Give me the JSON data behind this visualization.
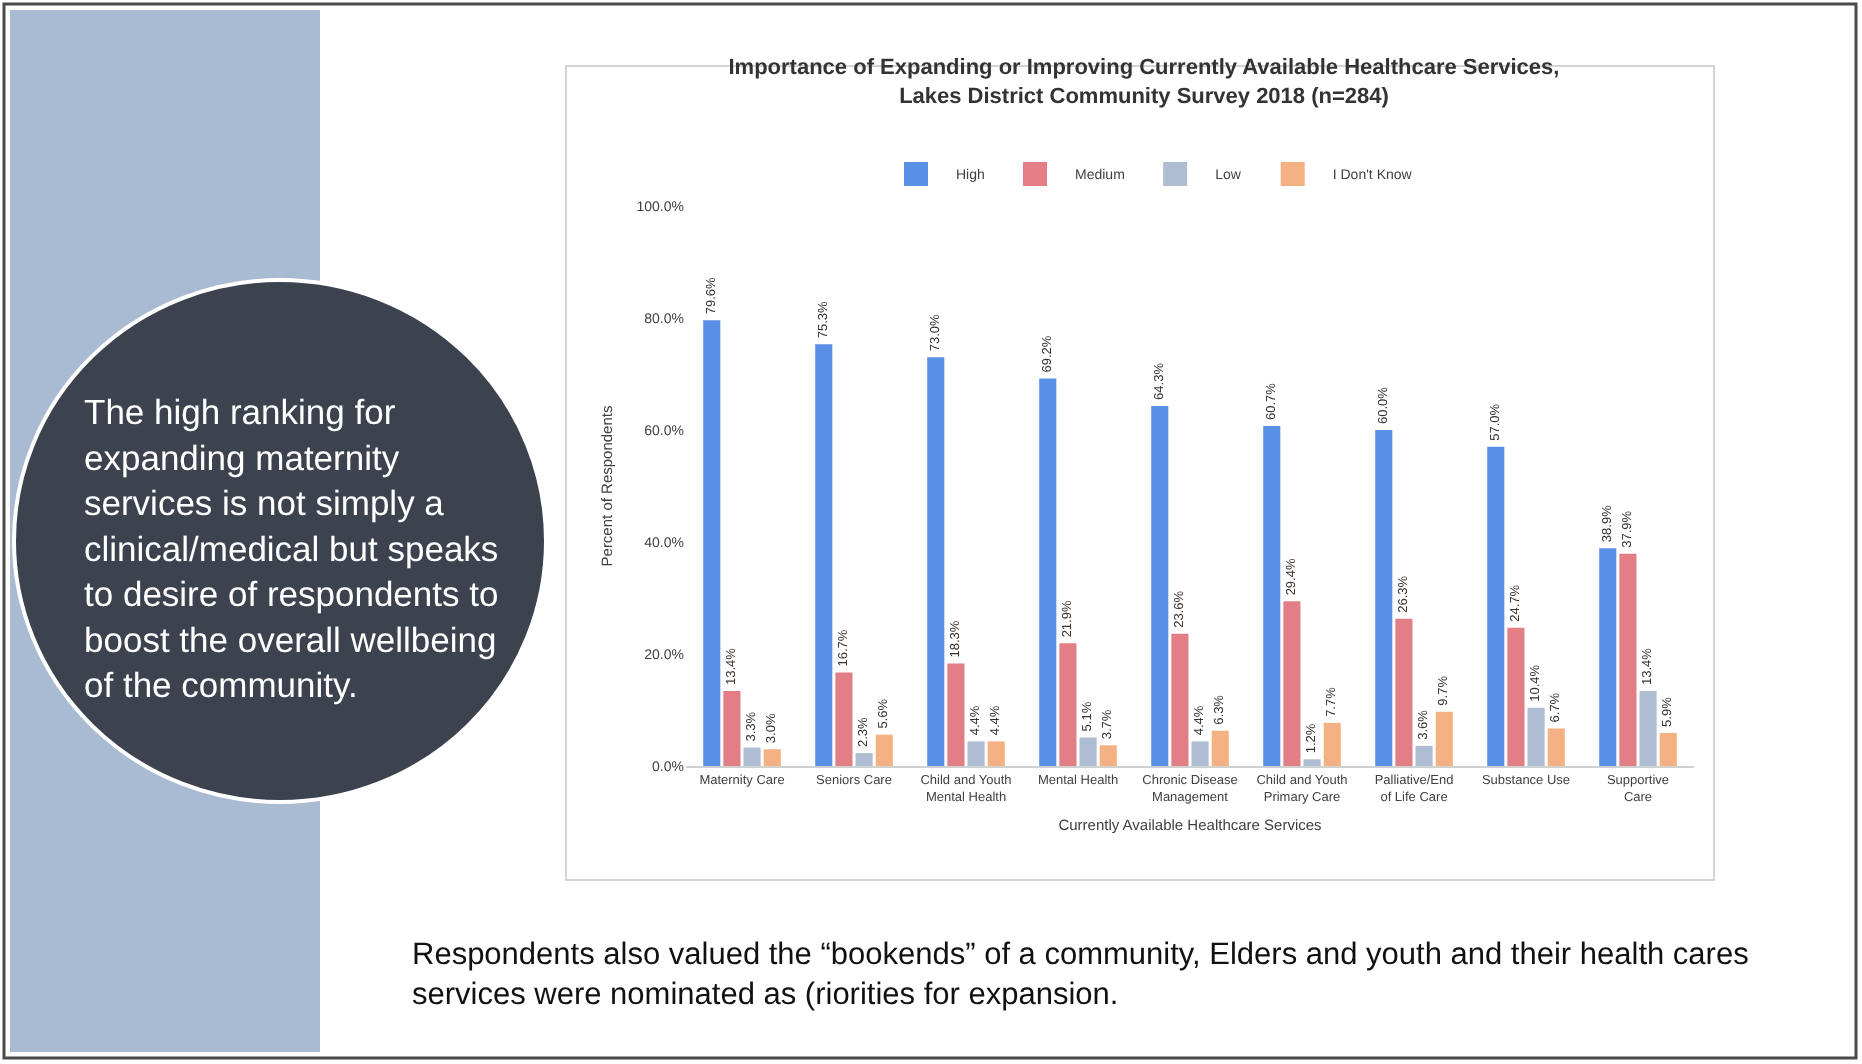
{
  "chart_data": {
    "type": "bar",
    "title": "Importance of Expanding or Improving Currently Available Healthcare Services,\nLakes District Community Survey 2018 (n=284)",
    "xlabel": "Currently Available Healthcare Services",
    "ylabel": "Percent of Respondents",
    "categories": [
      "Maternity Care",
      "Seniors Care",
      "Child and Youth\nMental Health",
      "Mental Health",
      "Chronic Disease\nManagement",
      "Child and Youth\nPrimary Care",
      "Palliative/End\nof Life Care",
      "Substance Use",
      "Supportive\nCare"
    ],
    "series": [
      {
        "name": "High",
        "color": "#5a8fe6",
        "values": [
          79.6,
          75.3,
          73.0,
          69.2,
          64.3,
          60.7,
          60.0,
          57.0,
          38.9
        ],
        "value_labels": [
          "79.6%",
          "75.3%",
          "73.0%",
          "69.2%",
          "64.3%",
          "60.7%",
          "60.0%",
          "57.0%",
          "38.9%"
        ]
      },
      {
        "name": "Medium",
        "color": "#e37d86",
        "values": [
          13.4,
          16.7,
          18.3,
          21.9,
          23.6,
          29.4,
          26.3,
          24.7,
          37.9
        ],
        "value_labels": [
          "13.4%",
          "16.7%",
          "18.3%",
          "21.9%",
          "23.6%",
          "29.4%",
          "26.3%",
          "24.7%",
          "37.9%"
        ]
      },
      {
        "name": "Low",
        "color": "#aebdd1",
        "values": [
          3.3,
          2.3,
          4.4,
          5.1,
          4.4,
          1.2,
          3.6,
          10.4,
          13.4
        ],
        "value_labels": [
          "3.3%",
          "2.3%",
          "4.4%",
          "5.1%",
          "4.4%",
          "1.2%",
          "3.6%",
          "10.4%",
          "13.4%"
        ]
      },
      {
        "name": "I Don't Know",
        "color": "#f4b183",
        "values": [
          3.0,
          5.6,
          4.4,
          3.7,
          6.3,
          7.7,
          9.7,
          6.7,
          5.9
        ],
        "value_labels": [
          "3.0%",
          "5.6%",
          "4.4%",
          "3.7%",
          "6.3%",
          "7.7%",
          "9.7%",
          "6.7%",
          "5.9%"
        ]
      }
    ],
    "ylim": [
      0,
      100
    ],
    "yticks": [
      {
        "value": 0,
        "label": "0.0%"
      },
      {
        "value": 20,
        "label": "20.0%"
      },
      {
        "value": 40,
        "label": "40.0%"
      },
      {
        "value": 60,
        "label": "60.0%"
      },
      {
        "value": 80,
        "label": "80.0%"
      },
      {
        "value": 100,
        "label": "100.0%"
      }
    ],
    "legend": "top",
    "annotations": [
      "The high ranking for\nexpanding maternity\nservices is not simply a\nclinical/medical but speaks\nto desire of respondents to\nboost the overall wellbeing\nof the community.",
      "Respondents also valued the “bookends” of a community, Elders and youth and their health cares\nservices were nominated as (riorities for expansion."
    ]
  }
}
